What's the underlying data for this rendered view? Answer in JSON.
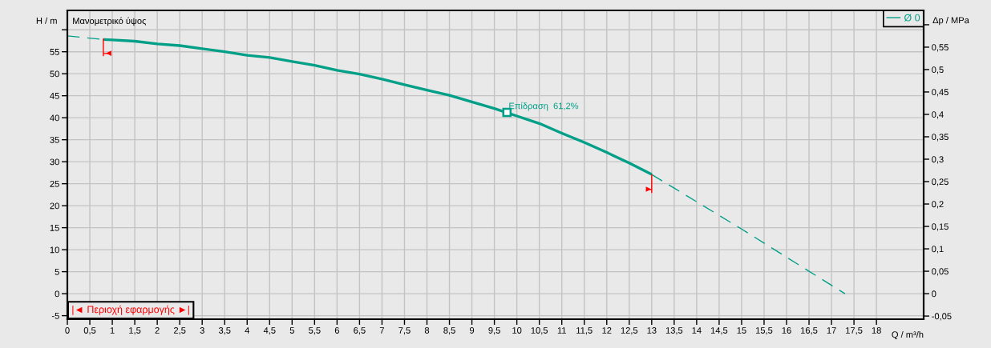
{
  "chart_data": {
    "type": "line",
    "title": "Μανομετρικό ύψος",
    "xlabel": "Q / m³/h",
    "ylabel": "H / m",
    "y2label": "Δp / MPa",
    "xlim": [
      0,
      19.05
    ],
    "xticks": [
      0,
      {
        "value": 0.5,
        "label": "0,5"
      },
      1,
      {
        "value": 1.5,
        "label": "1,5"
      },
      2,
      {
        "value": 2.5,
        "label": "2,5"
      },
      3,
      {
        "value": 3.5,
        "label": "3,5"
      },
      4,
      {
        "value": 4.5,
        "label": "4,5"
      },
      5,
      {
        "value": 5.5,
        "label": "5,5"
      },
      6,
      {
        "value": 6.5,
        "label": "6,5"
      },
      7,
      {
        "value": 7.5,
        "label": "7,5"
      },
      8,
      {
        "value": 8.5,
        "label": "8,5"
      },
      9,
      {
        "value": 9.5,
        "label": "9,5"
      },
      10,
      {
        "value": 10.5,
        "label": "10,5"
      },
      11,
      {
        "value": 11.5,
        "label": "11,5"
      },
      12,
      {
        "value": 12.5,
        "label": "12,5"
      },
      13,
      {
        "value": 13.5,
        "label": "13,5"
      },
      14,
      {
        "value": 14.5,
        "label": "14,5"
      },
      15,
      {
        "value": 15.5,
        "label": "15,5"
      },
      16,
      {
        "value": 16.5,
        "label": "16,5"
      },
      17,
      {
        "value": 17.5,
        "label": "17,5"
      },
      18
    ],
    "ylim": [
      -5.8,
      64.4
    ],
    "yticks": [
      -5,
      0,
      5,
      10,
      15,
      20,
      25,
      30,
      35,
      40,
      45,
      50,
      55,
      {
        "value": 60,
        "label": null
      }
    ],
    "y2lim": [
      -0.057,
      0.632
    ],
    "y2ticks": [
      {
        "value": -0.05,
        "label": "-0,05"
      },
      0,
      {
        "value": 0.05,
        "label": "0,05"
      },
      {
        "value": 0.1,
        "label": "0,1"
      },
      {
        "value": 0.15,
        "label": "0,15"
      },
      {
        "value": 0.2,
        "label": "0,2"
      },
      {
        "value": 0.25,
        "label": "0,25"
      },
      {
        "value": 0.3,
        "label": "0,3"
      },
      {
        "value": 0.35,
        "label": "0,35"
      },
      {
        "value": 0.4,
        "label": "0,4"
      },
      {
        "value": 0.45,
        "label": "0,45"
      },
      {
        "value": 0.5,
        "label": "0,5"
      },
      {
        "value": 0.55,
        "label": "0,55"
      },
      {
        "value": 0.6,
        "label": null
      }
    ],
    "grid": true,
    "legend": "top right",
    "series": [
      {
        "name": "Ø 0",
        "color": "#009f87",
        "line_style": "solid",
        "x": [
          0.8,
          1,
          1.5,
          2,
          2.5,
          3,
          3.5,
          4,
          4.5,
          5,
          5.5,
          6,
          6.5,
          7,
          7.5,
          8,
          8.5,
          9,
          9.5,
          10,
          10.5,
          11,
          11.5,
          12,
          12.5,
          13
        ],
        "values": [
          57.8,
          57.7,
          57.4,
          56.8,
          56.4,
          55.7,
          55.0,
          54.2,
          53.7,
          52.8,
          51.9,
          50.8,
          49.9,
          48.8,
          47.5,
          46.3,
          45.1,
          43.6,
          42.1,
          40.4,
          38.7,
          36.5,
          34.4,
          32.1,
          29.7,
          27.1
        ]
      },
      {
        "color": "#009f87",
        "line_style": "dashed",
        "x": [
          0,
          0.4,
          0.8
        ],
        "values": [
          58.6,
          58.2,
          57.8
        ]
      },
      {
        "color": "#009f87",
        "line_style": "dashed",
        "x": [
          13,
          13.5,
          14,
          14.5,
          15,
          15.5,
          16,
          16.5,
          17,
          17.3
        ],
        "values": [
          27.1,
          24.0,
          20.9,
          17.8,
          14.7,
          11.5,
          8.3,
          5.1,
          1.9,
          0
        ]
      },
      {
        "type": "scatter",
        "color": "#009f87",
        "marker": "square",
        "x": [
          9.78
        ],
        "values": [
          41.2
        ]
      },
      {
        "color": "#ff0000",
        "line_style": "solid",
        "x": [
          0.8,
          0.8,
          0.8,
          0.92
        ],
        "values": [
          58.0,
          54.1,
          54.6,
          54.6
        ]
      },
      {
        "color": "#ff0000",
        "line_style": "solid",
        "x": [
          13,
          13,
          13,
          12.93
        ],
        "values": [
          27.1,
          23.0,
          23.7,
          23.7
        ]
      }
    ],
    "annotations": [
      {
        "text": "Επίδραση  61,2%",
        "x": 9.78,
        "y": 41.2
      },
      {
        "text": "◄",
        "x": 0.92,
        "y": 54.6
      },
      {
        "text": "►",
        "x": 12.93,
        "y": 23.7
      },
      "|◄ Περιοχή εφαρμογής ►|"
    ]
  }
}
